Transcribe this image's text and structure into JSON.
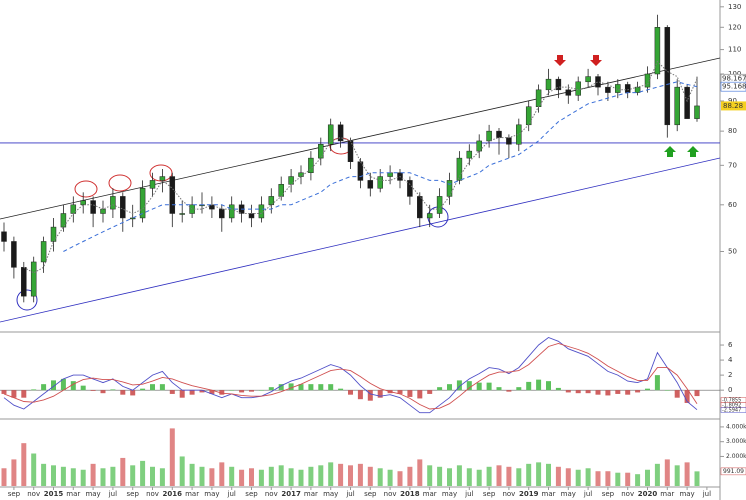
{
  "chart_data": {
    "type": "candlestick",
    "x": [
      "2014-08",
      "2014-09",
      "2014-10",
      "2014-11",
      "2014-12",
      "2015-01",
      "2015-02",
      "2015-03",
      "2015-04",
      "2015-05",
      "2015-06",
      "2015-07",
      "2015-08",
      "2015-09",
      "2015-10",
      "2015-11",
      "2015-12",
      "2016-01",
      "2016-02",
      "2016-03",
      "2016-04",
      "2016-05",
      "2016-06",
      "2016-07",
      "2016-08",
      "2016-09",
      "2016-10",
      "2016-11",
      "2016-12",
      "2017-01",
      "2017-02",
      "2017-03",
      "2017-04",
      "2017-05",
      "2017-06",
      "2017-07",
      "2017-08",
      "2017-09",
      "2017-10",
      "2017-11",
      "2017-12",
      "2018-01",
      "2018-02",
      "2018-03",
      "2018-04",
      "2018-05",
      "2018-06",
      "2018-07",
      "2018-08",
      "2018-09",
      "2018-10",
      "2018-11",
      "2018-12",
      "2019-01",
      "2019-02",
      "2019-03",
      "2019-04",
      "2019-05",
      "2019-06",
      "2019-07",
      "2019-08",
      "2019-09",
      "2019-10",
      "2019-11",
      "2019-12",
      "2020-01",
      "2020-02",
      "2020-03",
      "2020-04",
      "2020-05",
      "2020-06"
    ],
    "xlim": [
      "2014-08",
      "2020-08"
    ],
    "xticks": [
      {
        "value": "2014-09",
        "label": "sep"
      },
      {
        "value": "2014-11",
        "label": "nov"
      },
      {
        "value": "2015-01",
        "label": "2015"
      },
      {
        "value": "2015-03",
        "label": "mar"
      },
      {
        "value": "2015-05",
        "label": "may"
      },
      {
        "value": "2015-07",
        "label": "jul"
      },
      {
        "value": "2015-09",
        "label": "sep"
      },
      {
        "value": "2015-11",
        "label": "nov"
      },
      {
        "value": "2016-01",
        "label": "2016"
      },
      {
        "value": "2016-03",
        "label": "mar"
      },
      {
        "value": "2016-05",
        "label": "may"
      },
      {
        "value": "2016-07",
        "label": "jul"
      },
      {
        "value": "2016-09",
        "label": "sep"
      },
      {
        "value": "2016-11",
        "label": "nov"
      },
      {
        "value": "2017-01",
        "label": "2017"
      },
      {
        "value": "2017-03",
        "label": "mar"
      },
      {
        "value": "2017-05",
        "label": "may"
      },
      {
        "value": "2017-07",
        "label": "jul"
      },
      {
        "value": "2017-09",
        "label": "sep"
      },
      {
        "value": "2017-11",
        "label": "nov"
      },
      {
        "value": "2018-01",
        "label": "2018"
      },
      {
        "value": "2018-03",
        "label": "mar"
      },
      {
        "value": "2018-05",
        "label": "may"
      },
      {
        "value": "2018-07",
        "label": "jul"
      },
      {
        "value": "2018-09",
        "label": "sep"
      },
      {
        "value": "2018-11",
        "label": "nov"
      },
      {
        "value": "2019-01",
        "label": "2019"
      },
      {
        "value": "2019-03",
        "label": "mar"
      },
      {
        "value": "2019-05",
        "label": "may"
      },
      {
        "value": "2019-07",
        "label": "jul"
      },
      {
        "value": "2019-09",
        "label": "sep"
      },
      {
        "value": "2019-11",
        "label": "nov"
      },
      {
        "value": "2020-01",
        "label": "2020"
      },
      {
        "value": "2020-03",
        "label": "mar"
      },
      {
        "value": "2020-05",
        "label": "may"
      },
      {
        "value": "2020-07",
        "label": "jul"
      }
    ],
    "open": [
      54,
      52,
      47,
      42,
      48,
      52,
      55,
      58,
      60,
      61,
      58,
      59,
      62,
      57,
      57,
      64,
      66,
      67,
      58,
      58,
      60,
      60,
      59,
      57,
      60,
      58,
      57,
      60,
      62,
      65,
      67,
      68,
      72,
      76,
      82,
      77,
      71,
      66,
      64,
      67,
      68,
      66,
      62,
      57,
      58,
      62,
      66,
      72,
      74,
      77,
      80,
      78,
      76,
      82,
      88,
      94,
      98,
      94,
      92,
      97,
      99,
      95,
      93,
      96,
      93,
      95,
      100,
      120,
      82,
      95,
      84
    ],
    "high": [
      56,
      53,
      48,
      49,
      53,
      57,
      60,
      62,
      63,
      62,
      61,
      64,
      63,
      60,
      66,
      68,
      69,
      68,
      61,
      62,
      63,
      62,
      60,
      62,
      61,
      60,
      62,
      64,
      67,
      69,
      70,
      74,
      78,
      84,
      83,
      78,
      72,
      68,
      69,
      70,
      69,
      67,
      63,
      60,
      64,
      68,
      74,
      76,
      79,
      82,
      81,
      79,
      84,
      90,
      96,
      102,
      99,
      96,
      99,
      102,
      100,
      97,
      98,
      97,
      97,
      103,
      126,
      121,
      98,
      96,
      99
    ],
    "low": [
      50,
      45,
      41,
      41,
      46,
      50,
      54,
      56,
      58,
      55,
      56,
      57,
      54,
      55,
      56,
      62,
      63,
      55,
      56,
      57,
      58,
      57,
      54,
      56,
      56,
      55,
      56,
      58,
      61,
      63,
      65,
      66,
      70,
      74,
      75,
      69,
      64,
      62,
      63,
      65,
      64,
      60,
      55,
      55,
      57,
      60,
      65,
      70,
      72,
      75,
      73,
      72,
      74,
      80,
      86,
      92,
      91,
      89,
      90,
      95,
      92,
      90,
      91,
      91,
      92,
      93,
      98,
      78,
      80,
      84,
      83
    ],
    "close": [
      52,
      47,
      42,
      48,
      52,
      55,
      58,
      60,
      61,
      58,
      59,
      62,
      57,
      57,
      64,
      66,
      67,
      58,
      58,
      60,
      60,
      59,
      57,
      60,
      58,
      57,
      60,
      62,
      65,
      67,
      68,
      72,
      76,
      82,
      77,
      71,
      66,
      64,
      67,
      68,
      66,
      62,
      57,
      58,
      62,
      66,
      72,
      74,
      77,
      80,
      78,
      76,
      82,
      88,
      94,
      98,
      94,
      92,
      97,
      99,
      95,
      93,
      96,
      93,
      95,
      100,
      120,
      82,
      95,
      84,
      88.28
    ],
    "up_color": "#35a535",
    "down_color": "#1a1a1a",
    "ma_short": {
      "color": "#777777",
      "values": [
        null,
        null,
        47,
        46,
        47,
        52,
        55,
        58,
        60,
        60,
        59,
        60,
        59,
        58,
        59,
        62,
        66,
        64,
        61,
        59,
        59,
        60,
        59,
        59,
        58,
        58,
        58,
        60,
        62,
        65,
        67,
        69,
        72,
        77,
        78,
        77,
        71,
        67,
        66,
        66,
        67,
        65,
        62,
        59,
        59,
        62,
        67,
        71,
        74,
        77,
        78,
        78,
        79,
        82,
        88,
        93,
        95,
        95,
        94,
        95,
        97,
        96,
        94,
        94,
        95,
        96,
        105,
        101,
        99,
        90,
        98.167
      ]
    },
    "ma_long": {
      "color": "#3a6fd8",
      "values": [
        null,
        null,
        null,
        null,
        null,
        null,
        50,
        51,
        52,
        53,
        54,
        55,
        56,
        57,
        58,
        59,
        60,
        60,
        60,
        60,
        60,
        60,
        60,
        59,
        59,
        59,
        59,
        59,
        60,
        60,
        61,
        62,
        63,
        65,
        66,
        67,
        67,
        68,
        68,
        68,
        68,
        68,
        67,
        66,
        66,
        65,
        66,
        67,
        68,
        70,
        71,
        72,
        73,
        75,
        77,
        80,
        83,
        85,
        87,
        89,
        90,
        91,
        92,
        93,
        93,
        94,
        95,
        96,
        97,
        96,
        95.168
      ]
    },
    "ylim": [
      36.8,
      133.5
    ],
    "log_scale": true,
    "yticks": [
      50,
      60,
      70,
      80,
      90,
      100,
      110,
      120,
      130
    ],
    "hline": 76.4,
    "macd": {
      "ylim": [
        -3.7,
        7.6
      ],
      "yticks": [
        0,
        2,
        4,
        6
      ],
      "macd": {
        "color": "#5050c8",
        "values": [
          -1,
          -2,
          -2.5,
          -1.5,
          -0.5,
          0.5,
          1.5,
          2,
          2,
          1.5,
          1,
          1.5,
          0.5,
          0,
          1,
          2,
          2.5,
          1,
          0,
          0,
          0,
          -0.5,
          -1,
          -0.5,
          -1,
          -1,
          -0.8,
          -0.2,
          0.6,
          1.2,
          1.6,
          2.2,
          2.8,
          3.4,
          3,
          2,
          0.6,
          -0.5,
          -0.8,
          -0.6,
          -1,
          -2,
          -3,
          -3,
          -2,
          -1,
          0.5,
          1.5,
          2.2,
          3,
          2.8,
          2.2,
          3,
          4.5,
          6,
          7,
          6.5,
          5.5,
          5,
          4.5,
          3.5,
          2.5,
          2,
          1.2,
          1,
          1.5,
          5,
          3,
          1,
          -1.5,
          -2.5947
        ]
      },
      "signal": {
        "color": "#d05050",
        "values": [
          -0.5,
          -1,
          -1.5,
          -1.6,
          -1.3,
          -0.8,
          0,
          0.8,
          1.4,
          1.6,
          1.4,
          1.4,
          1.1,
          0.7,
          0.8,
          1.2,
          1.7,
          1.5,
          1,
          0.6,
          0.3,
          0,
          -0.4,
          -0.5,
          -0.7,
          -0.8,
          -0.8,
          -0.6,
          -0.2,
          0.3,
          0.8,
          1.4,
          2,
          2.6,
          2.8,
          2.6,
          1.8,
          0.9,
          0.2,
          -0.2,
          -0.5,
          -1.1,
          -1.9,
          -2.5,
          -2.4,
          -1.8,
          -0.8,
          0.3,
          1.2,
          2,
          2.4,
          2.4,
          2.6,
          3.4,
          4.6,
          5.8,
          6.2,
          5.8,
          5.4,
          4.9,
          4.1,
          3.2,
          2.5,
          1.8,
          1.3,
          1.3,
          3,
          3,
          2,
          0.2,
          -1.8092
        ]
      },
      "histogram": {
        "up_color": "#5cc05c",
        "down_color": "#d06060",
        "values": [
          -0.5,
          -1,
          -1,
          0.1,
          0.8,
          1.3,
          1.5,
          1.2,
          0.6,
          -0.1,
          -0.4,
          0.1,
          -0.6,
          -0.7,
          0.2,
          0.8,
          0.8,
          -0.5,
          -1,
          -0.6,
          -0.3,
          -0.5,
          -0.6,
          0,
          -0.3,
          -0.2,
          0,
          0.4,
          0.8,
          0.9,
          0.8,
          0.8,
          0.8,
          0.8,
          0.2,
          -0.6,
          -1.2,
          -1.4,
          -1,
          -0.4,
          -0.5,
          -0.9,
          -1.1,
          -0.5,
          0.4,
          0.8,
          1.3,
          1.2,
          1,
          1,
          0.4,
          -0.2,
          0.4,
          1.1,
          1.4,
          1.2,
          0.3,
          -0.3,
          -0.4,
          -0.4,
          -0.6,
          -0.7,
          -0.5,
          -0.6,
          -0.3,
          0.2,
          2,
          0,
          -1,
          -1.7,
          -0.7855
        ]
      }
    },
    "volume": {
      "up_color": "#7fcf7f",
      "down_color": "#e08585",
      "ylim": [
        0,
        4400
      ],
      "yticks": [
        {
          "value": 2000,
          "label": "2.000k"
        },
        {
          "value": 3000,
          "label": "3.000k"
        },
        {
          "value": 4000,
          "label": "4.000k"
        }
      ],
      "values": [
        1200,
        1800,
        2900,
        2200,
        1500,
        1400,
        1300,
        1200,
        1100,
        1500,
        1200,
        1300,
        1900,
        1400,
        1700,
        1300,
        1200,
        3900,
        2000,
        1500,
        1300,
        1200,
        1600,
        1300,
        1100,
        1200,
        1100,
        1300,
        1400,
        1200,
        1100,
        1300,
        1400,
        1600,
        1500,
        1400,
        1500,
        1300,
        1200,
        1100,
        1000,
        1300,
        1800,
        1400,
        1300,
        1200,
        1400,
        1200,
        1100,
        1300,
        1400,
        1300,
        1200,
        1500,
        1600,
        1500,
        1300,
        1200,
        1100,
        1200,
        1000,
        1000,
        900,
        900,
        800,
        1100,
        1500,
        1800,
        1400,
        1600,
        991.09
      ]
    }
  }
}
